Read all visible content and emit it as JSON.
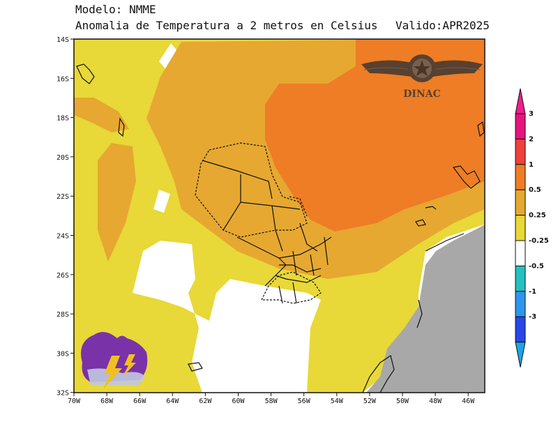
{
  "header": {
    "model_line": "Modelo: NMME",
    "variable_line": "Anomalia de Temperatura a 2 metros en Celsius",
    "valid_line": "Valido:APR2025"
  },
  "watermark": {
    "text": "DINAC",
    "icon": "winged-emblem-icon"
  },
  "logo": {
    "icon": "storm-cloud-lightning-icon"
  },
  "map": {
    "lon_ticks": [
      "70W",
      "68W",
      "66W",
      "64W",
      "62W",
      "60W",
      "58W",
      "56W",
      "54W",
      "52W",
      "50W",
      "48W",
      "46W"
    ],
    "lat_ticks": [
      "14S",
      "16S",
      "18S",
      "20S",
      "22S",
      "24S",
      "26S",
      "28S",
      "30S",
      "32S"
    ]
  },
  "colorbar": {
    "labels": [
      "3",
      "2",
      "1",
      "0.5",
      "0.25",
      "-0.25",
      "-0.5",
      "-1",
      "-3"
    ],
    "colors": [
      "#e8147e",
      "#f0403c",
      "#ee7d25",
      "#e6a830",
      "#e8d838",
      "#ffffff",
      "#25c0c0",
      "#2c96ee",
      "#2a45e8"
    ],
    "tip_top": "#ee1f8a",
    "tip_bottom": "#1aa6e8"
  },
  "colors": {
    "anom_1_2": "#ee7d25",
    "anom_05_1": "#e6a830",
    "anom_025_05": "#e8d838",
    "neutral": "#ffffff",
    "ocean": "#a8a8a8"
  }
}
